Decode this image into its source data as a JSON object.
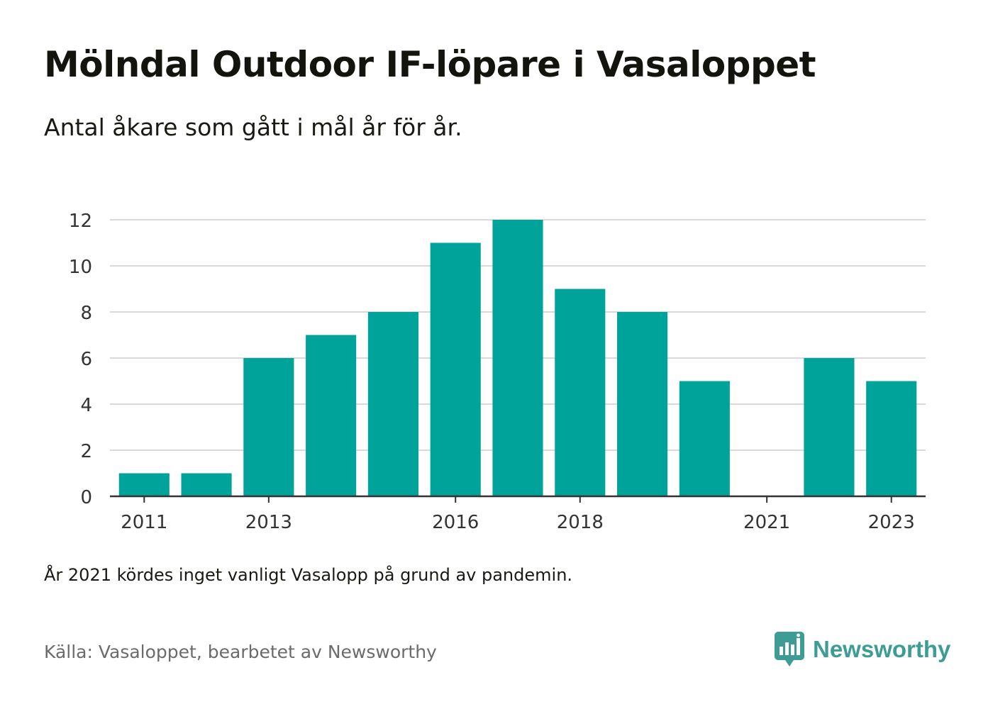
{
  "title": "Mölndal Outdoor IF-löpare i Vasaloppet",
  "subtitle": "Antal åkare som gått i mål år för år.",
  "note": "År 2021 kördes inget vanligt Vasalopp på grund av pandemin.",
  "source": "Källa: Vasaloppet, bearbetet av Newsworthy",
  "brand": {
    "name": "Newsworthy",
    "icon": "newsworthy-logo-icon"
  },
  "colors": {
    "bar": "#00a39a",
    "grid": "#d9d9d9",
    "axis": "#333333",
    "brand": "#3d9c94"
  },
  "chart_data": {
    "type": "bar",
    "categories": [
      "2011",
      "2012",
      "2013",
      "2014",
      "2015",
      "2016",
      "2017",
      "2018",
      "2019",
      "2020",
      "2021",
      "2022",
      "2023"
    ],
    "values": [
      1,
      1,
      6,
      7,
      8,
      11,
      12,
      9,
      8,
      5,
      0,
      6,
      5
    ],
    "x_tick_labels": [
      "2011",
      "2013",
      "2016",
      "2018",
      "2021",
      "2023"
    ],
    "y_ticks": [
      0,
      2,
      4,
      6,
      8,
      10,
      12
    ],
    "ylim": [
      0,
      12
    ],
    "grid": true,
    "legend": "none"
  }
}
